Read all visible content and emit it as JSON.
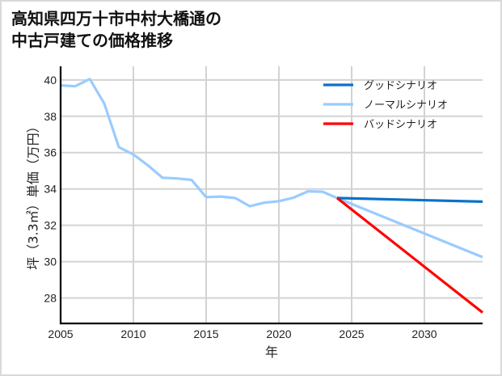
{
  "title": {
    "line1": "高知県四万十市中村大橋通の",
    "line2": "中古戸建ての価格推移"
  },
  "colors": {
    "grid": "#d3d3d3",
    "axis": "#000000",
    "good": "#0a72c8",
    "normal": "#99ccff",
    "bad": "#ff0000",
    "border": "#d9d9d9"
  },
  "chart_data": {
    "type": "line",
    "title": "高知県四万十市中村大橋通の中古戸建ての価格推移",
    "xlabel": "年",
    "ylabel": "坪（3.3㎡）単価（万円）",
    "xlim": [
      2005,
      2034
    ],
    "ylim": [
      26.6,
      40.75
    ],
    "xticks": [
      2005,
      2010,
      2015,
      2020,
      2025,
      2030
    ],
    "yticks": [
      28,
      30,
      32,
      34,
      36,
      38,
      40
    ],
    "grid": true,
    "legend_position": "upper right",
    "series": [
      {
        "name": "グッドシナリオ",
        "color": "#0a72c8",
        "x": [
          2024,
          2034
        ],
        "values": [
          33.5,
          33.3
        ]
      },
      {
        "name": "ノーマルシナリオ",
        "color": "#99ccff",
        "x": [
          2005,
          2006,
          2007,
          2008,
          2009,
          2010,
          2011,
          2012,
          2013,
          2014,
          2015,
          2016,
          2017,
          2018,
          2019,
          2020,
          2021,
          2022,
          2023,
          2024,
          2034
        ],
        "values": [
          39.7,
          39.65,
          40.05,
          38.7,
          36.3,
          35.9,
          35.3,
          34.62,
          34.58,
          34.5,
          33.55,
          33.58,
          33.5,
          33.05,
          33.25,
          33.33,
          33.52,
          33.87,
          33.85,
          33.5,
          30.25
        ]
      },
      {
        "name": "バッドシナリオ",
        "color": "#ff0000",
        "x": [
          2024,
          2034
        ],
        "values": [
          33.5,
          27.2
        ]
      }
    ]
  }
}
